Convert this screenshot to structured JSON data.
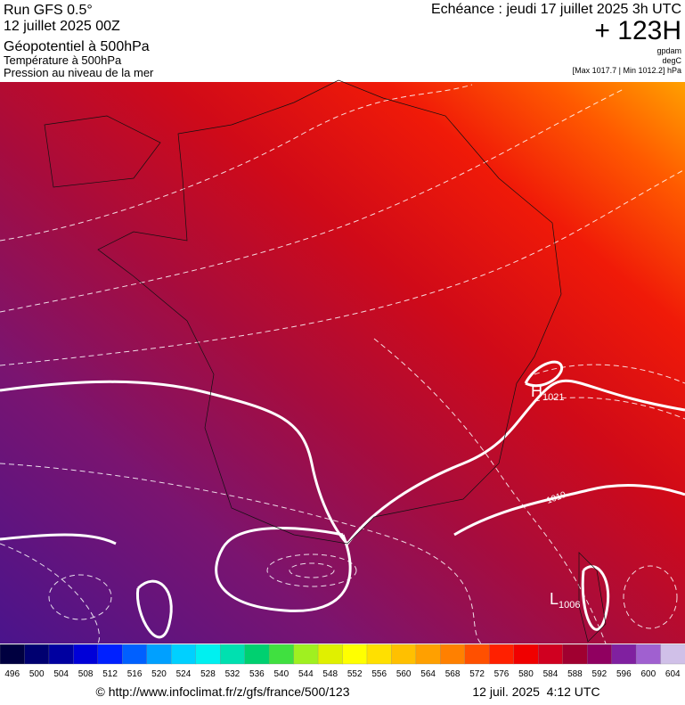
{
  "header": {
    "model": "Run GFS 0.5°",
    "run": "12 juillet 2025 00Z",
    "fields": [
      "Géopotentiel à 500hPa",
      "Température à 500hPa",
      "Pression au niveau de la mer"
    ],
    "echeance": "Echéance : jeudi 17 juillet 2025 3h UTC",
    "offset": "+ 123H",
    "units": [
      "gpdam",
      "degC",
      "[Max 1017.7 | Min 1012.2] hPa"
    ]
  },
  "map": {
    "centers": [
      {
        "label": "H",
        "value": "1021"
      },
      {
        "label": "L",
        "value": "1006"
      }
    ],
    "isobar_label": "1010"
  },
  "colorbar": {
    "ticks": [
      496,
      500,
      504,
      508,
      512,
      516,
      520,
      524,
      528,
      532,
      536,
      540,
      544,
      548,
      552,
      556,
      560,
      564,
      568,
      572,
      576,
      580,
      584,
      588,
      592,
      596,
      600,
      604
    ],
    "colors": [
      "#000040",
      "#000070",
      "#0000a0",
      "#0000d8",
      "#0020ff",
      "#0060ff",
      "#00a0ff",
      "#00d0ff",
      "#00f0f0",
      "#00e0b0",
      "#00d070",
      "#40e040",
      "#a0f020",
      "#e0f000",
      "#ffff00",
      "#ffe000",
      "#ffc000",
      "#ffa000",
      "#ff8000",
      "#ff5000",
      "#ff2000",
      "#f00000",
      "#d00020",
      "#a00030",
      "#900060",
      "#8020a0",
      "#a060d0",
      "#d0c0e8"
    ]
  },
  "footer": {
    "source": "© http://www.infoclimat.fr/z/gfs/france/500/123",
    "date": "12 juil. 2025  4:12 UTC"
  }
}
